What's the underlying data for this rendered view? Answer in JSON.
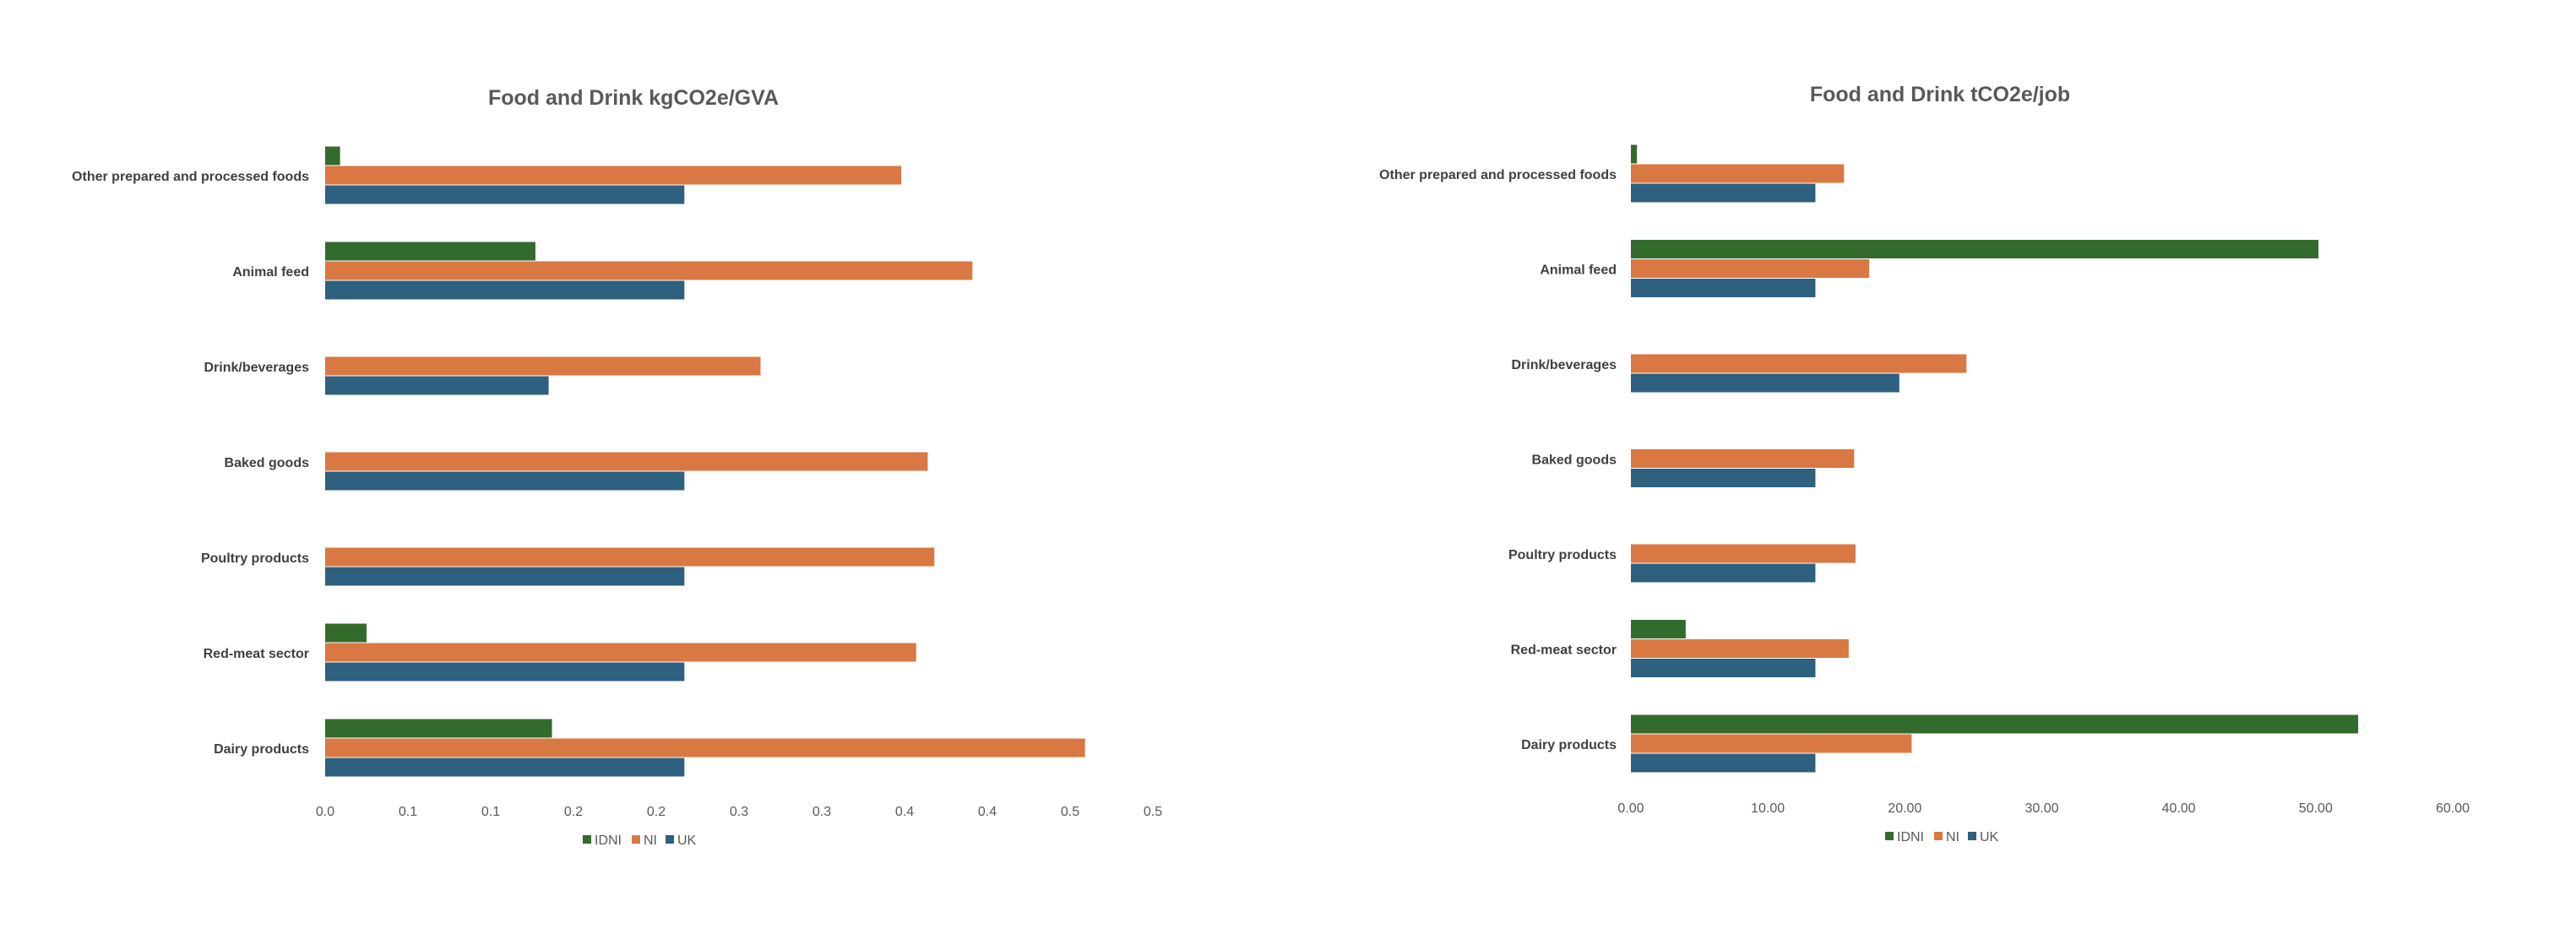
{
  "colors": {
    "IDNI": "#336b2d",
    "NI": "#d97842",
    "UK": "#2e607f"
  },
  "chart_data": [
    {
      "type": "bar",
      "orientation": "horizontal",
      "title": "Food and Drink kgCO2e/GVA",
      "categories": [
        "Other prepared and processed foods",
        "Animal feed",
        "Drink/beverages",
        "Baked goods",
        "Poultry products",
        "Red-meat sector",
        "Dairy products"
      ],
      "series": [
        {
          "name": "IDNI",
          "values": [
            0.009,
            0.127,
            0,
            0,
            0,
            0.025,
            0.137
          ]
        },
        {
          "name": "NI",
          "values": [
            0.348,
            0.391,
            0.263,
            0.364,
            0.368,
            0.357,
            0.459
          ]
        },
        {
          "name": "UK",
          "values": [
            0.217,
            0.217,
            0.135,
            0.217,
            0.217,
            0.217,
            0.217
          ]
        }
      ],
      "xlim": [
        0,
        0.5
      ],
      "ticks": [
        0,
        0.05,
        0.1,
        0.15,
        0.2,
        0.25,
        0.3,
        0.35,
        0.4,
        0.45,
        0.5
      ],
      "tick_labels": [
        "0.0",
        "0.1",
        "0.1",
        "0.2",
        "0.2",
        "0.3",
        "0.3",
        "0.4",
        "0.4",
        "0.5",
        "0.5"
      ],
      "legend": "bottom",
      "grid": false
    },
    {
      "type": "bar",
      "orientation": "horizontal",
      "title": "Food and Drink tCO2e/job",
      "categories": [
        "Other prepared and processed foods",
        "Animal feed",
        "Drink/beverages",
        "Baked goods",
        "Poultry products",
        "Red-meat sector",
        "Dairy products"
      ],
      "series": [
        {
          "name": "IDNI",
          "values": [
            0.44,
            50.2,
            0,
            0,
            0,
            4.0,
            53.1
          ]
        },
        {
          "name": "NI",
          "values": [
            15.56,
            17.4,
            24.5,
            16.3,
            16.4,
            15.9,
            20.5
          ]
        },
        {
          "name": "UK",
          "values": [
            13.47,
            13.47,
            19.6,
            13.47,
            13.47,
            13.47,
            13.47
          ]
        }
      ],
      "xlim": [
        0,
        60
      ],
      "ticks": [
        0,
        10,
        20,
        30,
        40,
        50,
        60
      ],
      "tick_labels": [
        "0.00",
        "10.00",
        "20.00",
        "30.00",
        "40.00",
        "50.00",
        "60.00"
      ],
      "legend": "bottom",
      "grid": false
    }
  ]
}
